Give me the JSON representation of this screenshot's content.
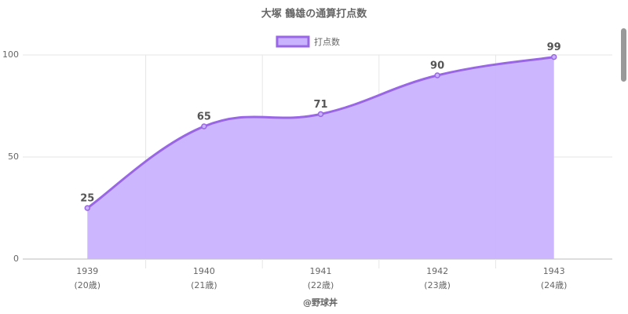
{
  "chart_data": {
    "type": "area",
    "title": "大塚 鶴雄の通算打点数",
    "x_label": "@野球丼",
    "categories": [
      "1939",
      "1940",
      "1941",
      "1942",
      "1943"
    ],
    "category_sublabels": [
      "(20歳)",
      "(21歳)",
      "(22歳)",
      "(23歳)",
      "(24歳)"
    ],
    "series": [
      {
        "name": "打点数",
        "color": "#9966e6",
        "fill": "#c9b3ff",
        "values": [
          25,
          65,
          71,
          90,
          99
        ]
      }
    ],
    "ylim": [
      0,
      100
    ],
    "yticks": [
      0,
      50,
      100
    ],
    "grid": true,
    "legend": "top"
  }
}
